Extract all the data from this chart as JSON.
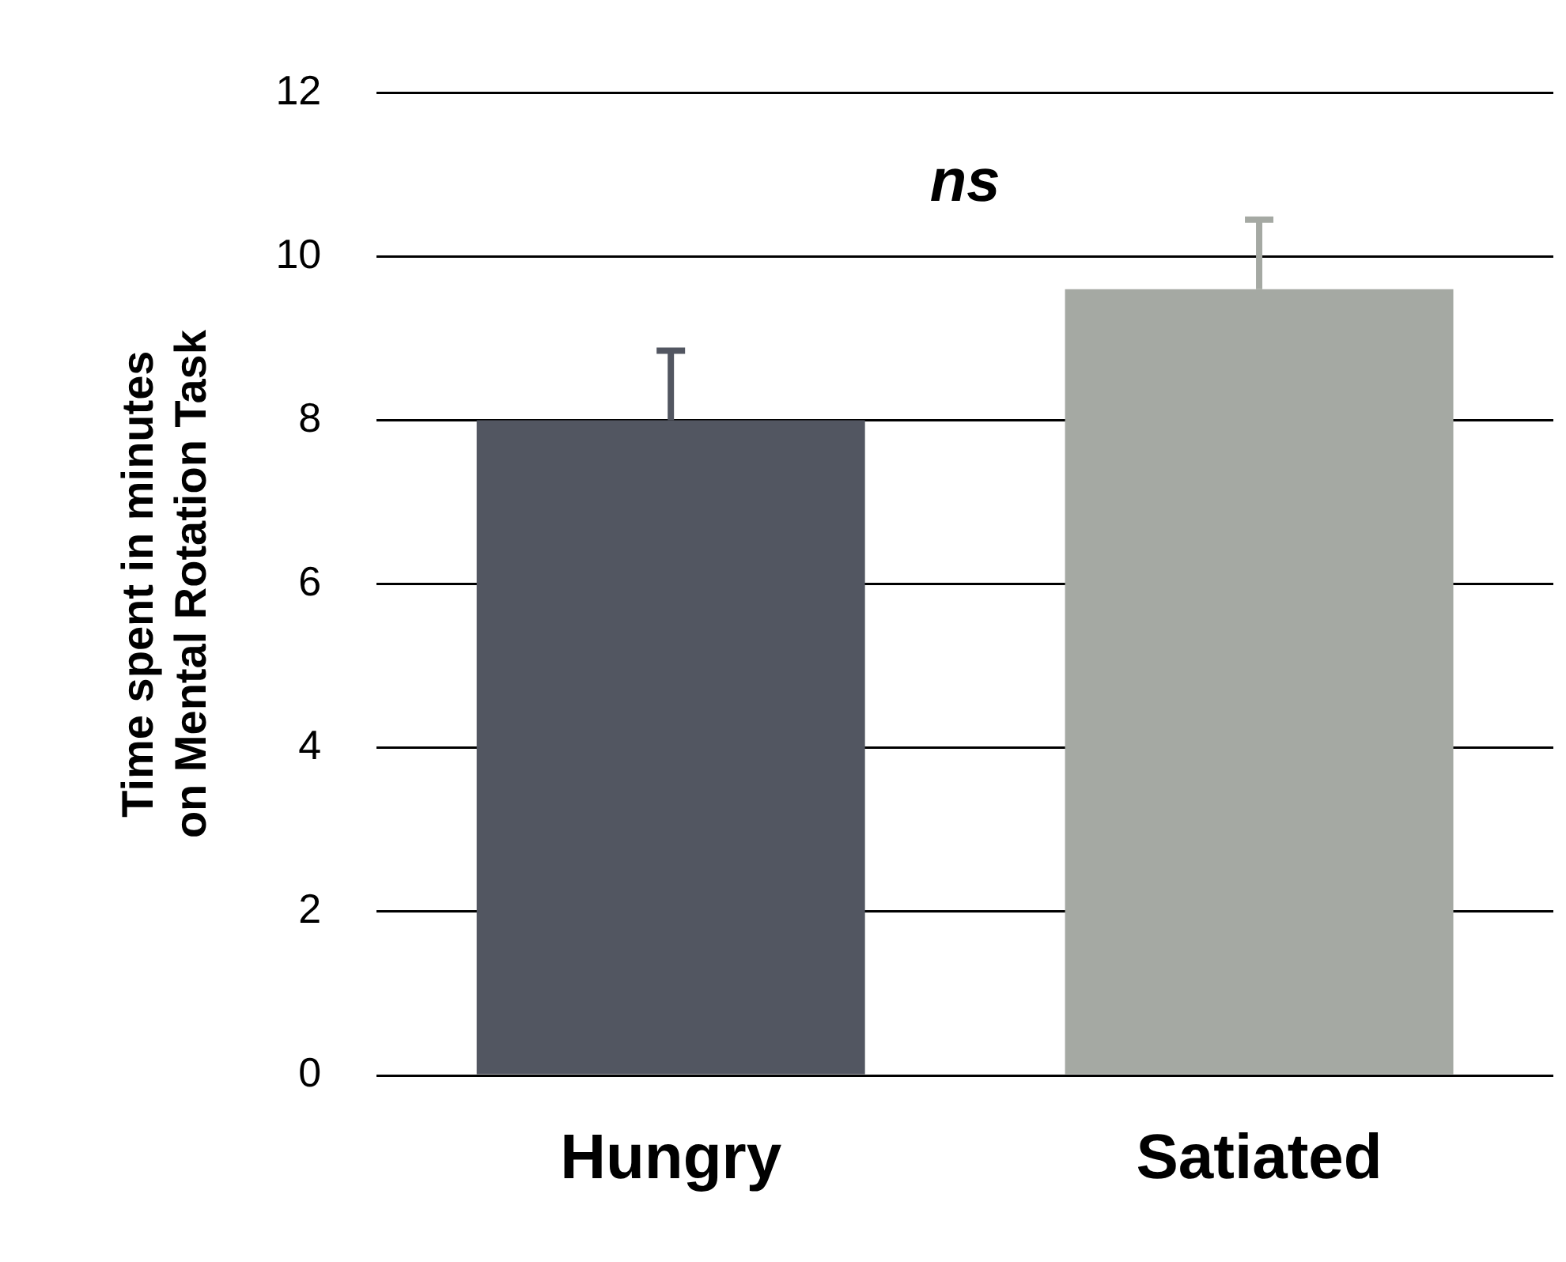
{
  "chart_data": {
    "type": "bar",
    "ylabel": "Time spent in minutes on Mental Rotation Task",
    "categories": [
      "Hungry",
      "Satiated"
    ],
    "values": [
      8.0,
      9.6
    ],
    "colors": [
      "#525661",
      "#a5a9a3"
    ],
    "errors": [
      [
        8.0,
        8.85
      ],
      [
        9.6,
        10.45
      ]
    ],
    "ylim": [
      0,
      12
    ],
    "yticks": [
      0,
      2,
      4,
      6,
      8,
      10,
      12
    ],
    "grid": "y",
    "legend": false,
    "annotations": [
      "ns"
    ]
  }
}
